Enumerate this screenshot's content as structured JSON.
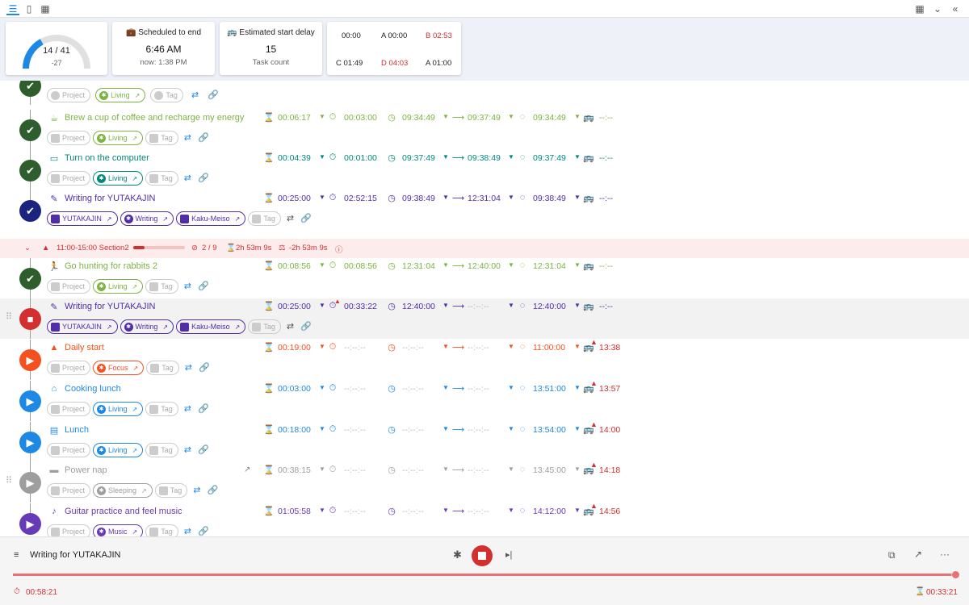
{
  "colors": {
    "green": "#4caf50",
    "teal": "#00897b",
    "indigo": "#512da8",
    "orange": "#f4511e",
    "blue": "#1e88e5",
    "gray": "#9e9e9e",
    "purple": "#673ab7",
    "red": "#d32f2f",
    "lime": "#7cb342",
    "darkgreen": "#2e5d2e",
    "navy": "#1a237e"
  },
  "header": {
    "icons": [
      "list-icon",
      "phone-icon",
      "calendar-icon"
    ],
    "right_icons": [
      "calendar-icon",
      "chevron-down-icon",
      "double-chevron-left-icon"
    ]
  },
  "gauge": {
    "value": "14 / 41",
    "sub": "-27",
    "fraction": 0.34
  },
  "card_end": {
    "heading": "Scheduled to end",
    "value": "6:46 AM",
    "sub": "now: 1:38 PM"
  },
  "card_delay": {
    "heading": "Estimated start delay",
    "value": "15",
    "sub": "Task count"
  },
  "card_stats": {
    "t1": "00:00",
    "t2": "A 00:00",
    "t3": "B 02:53",
    "t4": "C 01:49",
    "t5": "D 04:03",
    "t6": "A 01:00"
  },
  "tasks": [
    {
      "title": "Brew a cup of coffee and recharge my energy",
      "project": "Project",
      "label": "Living",
      "tag": "Tag",
      "est": "00:06:17",
      "act": "00:03:00",
      "start": "09:34:49",
      "end": "09:37:49",
      "plan": "09:34:49",
      "due": "--:--"
    },
    {
      "title": "Turn on the computer",
      "project": "Project",
      "label": "Living",
      "tag": "Tag",
      "est": "00:04:39",
      "act": "00:01:00",
      "start": "09:37:49",
      "end": "09:38:49",
      "plan": "09:37:49",
      "due": "--:--"
    },
    {
      "title": "Writing for YUTAKAJIN",
      "project": "YUTAKAJIN",
      "label": "Writing",
      "label2": "Kaku-Meiso",
      "tag": "Tag",
      "est": "00:25:00",
      "act": "02:52:15",
      "start": "09:38:49",
      "end": "12:31:04",
      "plan": "09:38:49",
      "due": "--:--"
    },
    {
      "title": "Go hunting for rabbits 2",
      "project": "Project",
      "label": "Living",
      "tag": "Tag",
      "est": "00:08:56",
      "act": "00:08:56",
      "start": "12:31:04",
      "end": "12:40:00",
      "plan": "12:31:04",
      "due": "--:--"
    },
    {
      "title": "Writing for YUTAKAJIN",
      "project": "YUTAKAJIN",
      "label": "Writing",
      "label2": "Kaku-Meiso",
      "tag": "Tag",
      "est": "00:25:00",
      "act": "00:33:22",
      "start": "12:40:00",
      "end": "--:--:--",
      "plan": "12:40:00",
      "due": "--:--"
    },
    {
      "title": "Daily start",
      "project": "Project",
      "label": "Focus",
      "tag": "Tag",
      "est": "00:19:00",
      "act": "--:--:--",
      "start": "--:--:--",
      "end": "--:--:--",
      "plan": "11:00:00",
      "due": "13:38"
    },
    {
      "title": "Cooking lunch",
      "project": "Project",
      "label": "Living",
      "tag": "Tag",
      "est": "00:03:00",
      "act": "--:--:--",
      "start": "--:--:--",
      "end": "--:--:--",
      "plan": "13:51:00",
      "due": "13:57"
    },
    {
      "title": "Lunch",
      "project": "Project",
      "label": "Living",
      "tag": "Tag",
      "est": "00:18:00",
      "act": "--:--:--",
      "start": "--:--:--",
      "end": "--:--:--",
      "plan": "13:54:00",
      "due": "14:00"
    },
    {
      "title": "Power nap",
      "project": "Project",
      "label": "Sleeping",
      "tag": "Tag",
      "est": "00:38:15",
      "act": "--:--:--",
      "start": "--:--:--",
      "end": "--:--:--",
      "plan": "13:45:00",
      "due": "14:18"
    },
    {
      "title": "Guitar practice and feel music",
      "project": "Project",
      "label": "Music",
      "tag": "Tag",
      "est": "01:05:58",
      "act": "--:--:--",
      "start": "--:--:--",
      "end": "--:--:--",
      "plan": "14:12:00",
      "due": "14:56"
    }
  ],
  "partial_row": {
    "project": "Project",
    "label": "Living",
    "tag": "Tag"
  },
  "section": {
    "name": "11:00-15:00  Section2",
    "count": "2 / 9",
    "dur": "2h 53m 9s",
    "diff": "-2h 53m 9s",
    "progress": 0.22
  },
  "bottom": {
    "title": "Writing for YUTAKAJIN",
    "elapsed": "00:58:21",
    "remaining": "00:33:21",
    "progress": 0.995
  }
}
